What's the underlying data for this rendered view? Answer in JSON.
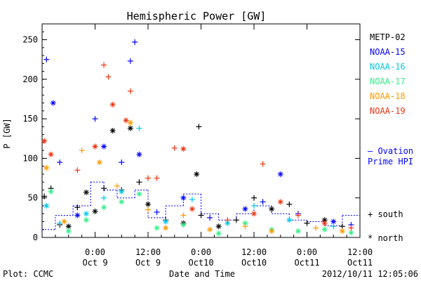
{
  "chart_data": {
    "type": "scatter",
    "title": "Hemispheric Power [GW]",
    "ylabel": "P [GW]",
    "xlabel": "Date and Time",
    "xlim": [
      "2012-10-08 12:00",
      "2012-10-11 12:00"
    ],
    "ylim": [
      0,
      270
    ],
    "yticks": [
      0,
      50,
      100,
      150,
      200,
      250
    ],
    "xticks": [
      {
        "t": "2012-10-09 00:00",
        "top": "0:00",
        "bottom": "Oct 9"
      },
      {
        "t": "2012-10-09 12:00",
        "top": "12:00",
        "bottom": "Oct 9"
      },
      {
        "t": "2012-10-10 00:00",
        "top": "0:00",
        "bottom": "Oct10"
      },
      {
        "t": "2012-10-10 12:00",
        "top": "12:00",
        "bottom": "Oct10"
      },
      {
        "t": "2012-10-11 00:00",
        "top": "0:00",
        "bottom": "Oct11"
      },
      {
        "t": "2012-10-11 12:00",
        "top": "12:00",
        "bottom": "Oct11"
      }
    ],
    "grid": false,
    "legend_position": "right",
    "series": [
      {
        "name": "METP-02",
        "color": "#000000",
        "points": [
          {
            "x": "2012-10-08 12:30",
            "y": 52,
            "m": "+"
          },
          {
            "x": "2012-10-08 14:00",
            "y": 62,
            "m": "+"
          },
          {
            "x": "2012-10-08 16:00",
            "y": 16,
            "m": "+"
          },
          {
            "x": "2012-10-08 18:00",
            "y": 14,
            "m": "*"
          },
          {
            "x": "2012-10-08 20:00",
            "y": 38,
            "m": "+"
          },
          {
            "x": "2012-10-08 22:00",
            "y": 57,
            "m": "*"
          },
          {
            "x": "2012-10-09 00:00",
            "y": 33,
            "m": "*"
          },
          {
            "x": "2012-10-09 02:00",
            "y": 62,
            "m": "+"
          },
          {
            "x": "2012-10-09 04:00",
            "y": 135,
            "m": "*"
          },
          {
            "x": "2012-10-09 06:00",
            "y": 60,
            "m": "+"
          },
          {
            "x": "2012-10-09 08:00",
            "y": 138,
            "m": "*"
          },
          {
            "x": "2012-10-09 10:00",
            "y": 70,
            "m": "+"
          },
          {
            "x": "2012-10-09 12:00",
            "y": 42,
            "m": "*"
          },
          {
            "x": "2012-10-09 16:00",
            "y": 22,
            "m": "+"
          },
          {
            "x": "2012-10-09 20:00",
            "y": 18,
            "m": "*"
          },
          {
            "x": "2012-10-10 00:00",
            "y": 28,
            "m": "+"
          },
          {
            "x": "2012-10-09 23:00",
            "y": 80,
            "m": "*"
          },
          {
            "x": "2012-10-09 23:30",
            "y": 140,
            "m": "+"
          },
          {
            "x": "2012-10-10 04:00",
            "y": 14,
            "m": "*"
          },
          {
            "x": "2012-10-10 08:00",
            "y": 22,
            "m": "+"
          },
          {
            "x": "2012-10-10 12:00",
            "y": 50,
            "m": "+"
          },
          {
            "x": "2012-10-10 16:00",
            "y": 36,
            "m": "*"
          },
          {
            "x": "2012-10-10 20:00",
            "y": 42,
            "m": "+"
          },
          {
            "x": "2012-10-11 00:00",
            "y": 18,
            "m": "+"
          },
          {
            "x": "2012-10-11 04:00",
            "y": 22,
            "m": "*"
          },
          {
            "x": "2012-10-11 08:00",
            "y": 14,
            "m": "+"
          }
        ]
      },
      {
        "name": "NOAA-15",
        "color": "#0000ff",
        "points": [
          {
            "x": "2012-10-08 13:00",
            "y": 225,
            "m": "+"
          },
          {
            "x": "2012-10-08 14:30",
            "y": 170,
            "m": "*"
          },
          {
            "x": "2012-10-08 16:00",
            "y": 95,
            "m": "+"
          },
          {
            "x": "2012-10-08 20:00",
            "y": 28,
            "m": "*"
          },
          {
            "x": "2012-10-09 00:00",
            "y": 150,
            "m": "+"
          },
          {
            "x": "2012-10-09 02:00",
            "y": 115,
            "m": "*"
          },
          {
            "x": "2012-10-09 06:00",
            "y": 95,
            "m": "+"
          },
          {
            "x": "2012-10-09 08:00",
            "y": 223,
            "m": "+"
          },
          {
            "x": "2012-10-09 09:00",
            "y": 247,
            "m": "+"
          },
          {
            "x": "2012-10-09 10:00",
            "y": 105,
            "m": "*"
          },
          {
            "x": "2012-10-09 14:00",
            "y": 32,
            "m": "+"
          },
          {
            "x": "2012-10-09 20:00",
            "y": 50,
            "m": "*"
          },
          {
            "x": "2012-10-10 02:00",
            "y": 25,
            "m": "+"
          },
          {
            "x": "2012-10-10 10:00",
            "y": 36,
            "m": "*"
          },
          {
            "x": "2012-10-10 14:00",
            "y": 45,
            "m": "+"
          },
          {
            "x": "2012-10-10 18:00",
            "y": 80,
            "m": "*"
          },
          {
            "x": "2012-10-10 22:00",
            "y": 30,
            "m": "+"
          },
          {
            "x": "2012-10-11 06:00",
            "y": 20,
            "m": "*"
          },
          {
            "x": "2012-10-11 10:00",
            "y": 16,
            "m": "+"
          }
        ]
      },
      {
        "name": "NOAA-16",
        "color": "#00c8e6",
        "points": [
          {
            "x": "2012-10-08 13:00",
            "y": 40,
            "m": "*"
          },
          {
            "x": "2012-10-08 16:00",
            "y": 18,
            "m": "+"
          },
          {
            "x": "2012-10-08 22:00",
            "y": 30,
            "m": "*"
          },
          {
            "x": "2012-10-09 02:00",
            "y": 50,
            "m": "+"
          },
          {
            "x": "2012-10-09 06:00",
            "y": 58,
            "m": "*"
          },
          {
            "x": "2012-10-09 10:00",
            "y": 138,
            "m": "+"
          },
          {
            "x": "2012-10-09 16:00",
            "y": 20,
            "m": "*"
          },
          {
            "x": "2012-10-09 22:00",
            "y": 48,
            "m": "+"
          },
          {
            "x": "2012-10-10 06:00",
            "y": 18,
            "m": "*"
          },
          {
            "x": "2012-10-10 12:00",
            "y": 40,
            "m": "+"
          },
          {
            "x": "2012-10-10 20:00",
            "y": 22,
            "m": "*"
          },
          {
            "x": "2012-10-11 06:00",
            "y": 14,
            "m": "+"
          }
        ]
      },
      {
        "name": "NOAA-17",
        "color": "#33ee88",
        "points": [
          {
            "x": "2012-10-08 14:00",
            "y": 58,
            "m": "*"
          },
          {
            "x": "2012-10-08 18:00",
            "y": 8,
            "m": "*"
          },
          {
            "x": "2012-10-08 22:00",
            "y": 22,
            "m": "*"
          },
          {
            "x": "2012-10-09 02:00",
            "y": 38,
            "m": "*"
          },
          {
            "x": "2012-10-09 06:00",
            "y": 45,
            "m": "*"
          },
          {
            "x": "2012-10-09 10:00",
            "y": 55,
            "m": "*"
          },
          {
            "x": "2012-10-09 14:00",
            "y": 12,
            "m": "*"
          },
          {
            "x": "2012-10-09 20:00",
            "y": 16,
            "m": "*"
          },
          {
            "x": "2012-10-10 04:00",
            "y": 5,
            "m": "*"
          },
          {
            "x": "2012-10-10 10:00",
            "y": 18,
            "m": "*"
          },
          {
            "x": "2012-10-10 16:00",
            "y": 10,
            "m": "*"
          },
          {
            "x": "2012-10-10 22:00",
            "y": 8,
            "m": "*"
          },
          {
            "x": "2012-10-11 04:00",
            "y": 10,
            "m": "*"
          },
          {
            "x": "2012-10-11 10:00",
            "y": 6,
            "m": "*"
          }
        ]
      },
      {
        "name": "NOAA-18",
        "color": "#ff9900",
        "points": [
          {
            "x": "2012-10-08 13:00",
            "y": 88,
            "m": "*"
          },
          {
            "x": "2012-10-08 17:00",
            "y": 20,
            "m": "*"
          },
          {
            "x": "2012-10-08 21:00",
            "y": 110,
            "m": "+"
          },
          {
            "x": "2012-10-09 01:00",
            "y": 95,
            "m": "*"
          },
          {
            "x": "2012-10-09 05:00",
            "y": 65,
            "m": "+"
          },
          {
            "x": "2012-10-09 08:00",
            "y": 145,
            "m": "*"
          },
          {
            "x": "2012-10-09 12:00",
            "y": 35,
            "m": "+"
          },
          {
            "x": "2012-10-09 16:00",
            "y": 12,
            "m": "*"
          },
          {
            "x": "2012-10-09 20:00",
            "y": 28,
            "m": "+"
          },
          {
            "x": "2012-10-10 02:00",
            "y": 10,
            "m": "*"
          },
          {
            "x": "2012-10-10 10:00",
            "y": 14,
            "m": "+"
          },
          {
            "x": "2012-10-10 16:00",
            "y": 8,
            "m": "*"
          },
          {
            "x": "2012-10-11 02:00",
            "y": 12,
            "m": "+"
          },
          {
            "x": "2012-10-11 08:00",
            "y": 8,
            "m": "*"
          }
        ]
      },
      {
        "name": "NOAA-19",
        "color": "#ee3311",
        "points": [
          {
            "x": "2012-10-08 12:30",
            "y": 122,
            "m": "*"
          },
          {
            "x": "2012-10-08 14:00",
            "y": 105,
            "m": "*"
          },
          {
            "x": "2012-10-08 20:00",
            "y": 85,
            "m": "+"
          },
          {
            "x": "2012-10-09 00:00",
            "y": 115,
            "m": "*"
          },
          {
            "x": "2012-10-09 02:00",
            "y": 218,
            "m": "+"
          },
          {
            "x": "2012-10-09 03:00",
            "y": 203,
            "m": "+"
          },
          {
            "x": "2012-10-09 04:00",
            "y": 168,
            "m": "*"
          },
          {
            "x": "2012-10-09 07:00",
            "y": 148,
            "m": "*"
          },
          {
            "x": "2012-10-09 08:00",
            "y": 185,
            "m": "+"
          },
          {
            "x": "2012-10-09 12:00",
            "y": 75,
            "m": "+"
          },
          {
            "x": "2012-10-09 14:00",
            "y": 75,
            "m": "+"
          },
          {
            "x": "2012-10-09 18:00",
            "y": 113,
            "m": "+"
          },
          {
            "x": "2012-10-09 20:00",
            "y": 112,
            "m": "*"
          },
          {
            "x": "2012-10-09 22:00",
            "y": 36,
            "m": "*"
          },
          {
            "x": "2012-10-10 06:00",
            "y": 22,
            "m": "+"
          },
          {
            "x": "2012-10-10 12:00",
            "y": 30,
            "m": "*"
          },
          {
            "x": "2012-10-10 14:00",
            "y": 93,
            "m": "+"
          },
          {
            "x": "2012-10-10 18:00",
            "y": 45,
            "m": "*"
          },
          {
            "x": "2012-10-10 22:00",
            "y": 28,
            "m": "+"
          },
          {
            "x": "2012-10-11 04:00",
            "y": 18,
            "m": "*"
          },
          {
            "x": "2012-10-11 10:00",
            "y": 12,
            "m": "+"
          }
        ]
      }
    ],
    "ovation": {
      "color": "#0000ff",
      "label_line1": "— Ovation",
      "label_line2": "Prime HPI",
      "segments": [
        {
          "x0": "2012-10-08 12:00",
          "x1": "2012-10-08 15:00",
          "y": 10
        },
        {
          "x0": "2012-10-08 15:00",
          "x1": "2012-10-08 19:00",
          "y": 28
        },
        {
          "x0": "2012-10-08 19:00",
          "x1": "2012-10-08 23:00",
          "y": 40
        },
        {
          "x0": "2012-10-08 23:00",
          "x1": "2012-10-09 02:00",
          "y": 70
        },
        {
          "x0": "2012-10-09 02:00",
          "x1": "2012-10-09 05:00",
          "y": 60
        },
        {
          "x0": "2012-10-09 05:00",
          "x1": "2012-10-09 09:00",
          "y": 50
        },
        {
          "x0": "2012-10-09 09:00",
          "x1": "2012-10-09 12:00",
          "y": 60
        },
        {
          "x0": "2012-10-09 12:00",
          "x1": "2012-10-09 16:00",
          "y": 25
        },
        {
          "x0": "2012-10-09 16:00",
          "x1": "2012-10-09 20:00",
          "y": 40
        },
        {
          "x0": "2012-10-09 20:00",
          "x1": "2012-10-10 00:00",
          "y": 55
        },
        {
          "x0": "2012-10-10 00:00",
          "x1": "2012-10-10 04:00",
          "y": 30
        },
        {
          "x0": "2012-10-10 04:00",
          "x1": "2012-10-10 08:00",
          "y": 22
        },
        {
          "x0": "2012-10-10 08:00",
          "x1": "2012-10-10 12:00",
          "y": 30
        },
        {
          "x0": "2012-10-10 12:00",
          "x1": "2012-10-10 16:00",
          "y": 40
        },
        {
          "x0": "2012-10-10 16:00",
          "x1": "2012-10-10 20:00",
          "y": 30
        },
        {
          "x0": "2012-10-10 20:00",
          "x1": "2012-10-11 00:00",
          "y": 22
        },
        {
          "x0": "2012-10-11 00:00",
          "x1": "2012-10-11 04:00",
          "y": 20
        },
        {
          "x0": "2012-10-11 04:00",
          "x1": "2012-10-11 08:00",
          "y": 15
        },
        {
          "x0": "2012-10-11 08:00",
          "x1": "2012-10-11 12:00",
          "y": 28
        }
      ]
    },
    "marker_legend": {
      "south": "+ south",
      "north": "* north"
    }
  },
  "footer": {
    "plot_label": "Plot: CCMC",
    "timestamp": "2012/10/11 12:05:06"
  }
}
